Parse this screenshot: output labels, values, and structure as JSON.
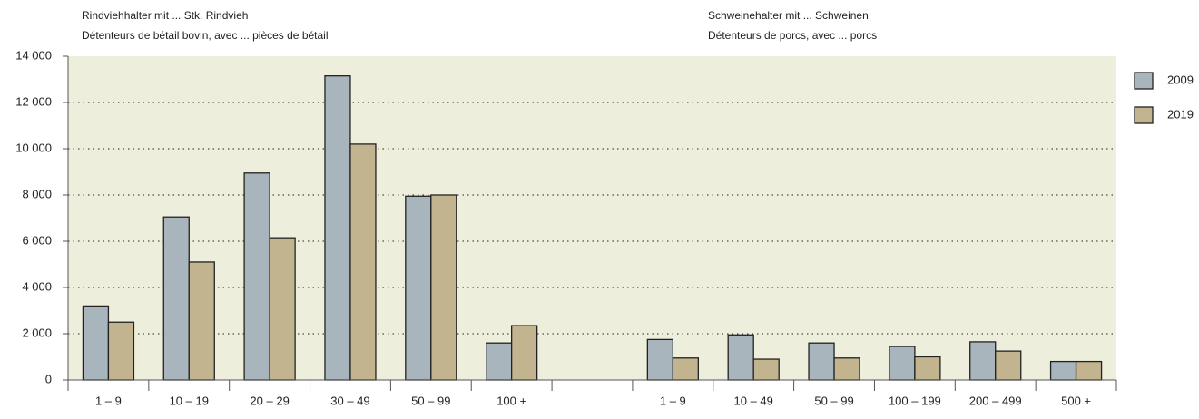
{
  "chart_data": {
    "type": "bar",
    "annotations": [
      "Rindviehhalter mit ... Stk. Rindvieh",
      "Détenteurs de bétail bovin, avec ... pièces de bétail",
      "Schweinehalter mit ... Schweinen",
      "Détenteurs de porcs, avec ... porcs"
    ],
    "categories": [
      "1 – 9",
      "10 – 19",
      "20 – 29",
      "30 – 49",
      "50 – 99",
      "100 +",
      null,
      "1 – 9",
      "10 – 49",
      "50 – 99",
      "100 – 199",
      "200 – 499",
      "500 +"
    ],
    "series": [
      {
        "name": "2009",
        "color": "#a9b5bc",
        "values": [
          3200,
          7050,
          8950,
          13150,
          7950,
          1600,
          null,
          1750,
          1950,
          1600,
          1450,
          1650,
          800
        ]
      },
      {
        "name": "2019",
        "color": "#c2b48f",
        "values": [
          2500,
          5100,
          6150,
          10200,
          8000,
          2350,
          null,
          950,
          900,
          950,
          1000,
          1250,
          800
        ]
      }
    ],
    "ylim": [
      0,
      14000
    ],
    "yticks": [
      0,
      {
        "value": 2000,
        "label": "2 000"
      },
      {
        "value": 4000,
        "label": "4 000"
      },
      {
        "value": 6000,
        "label": "6 000"
      },
      {
        "value": 8000,
        "label": "8 000"
      },
      {
        "value": 10000,
        "label": "10 000"
      },
      {
        "value": 12000,
        "label": "12 000"
      },
      {
        "value": 14000,
        "label": "14 000"
      }
    ],
    "grid": true,
    "legend": "right",
    "background": "#eeeedc"
  }
}
